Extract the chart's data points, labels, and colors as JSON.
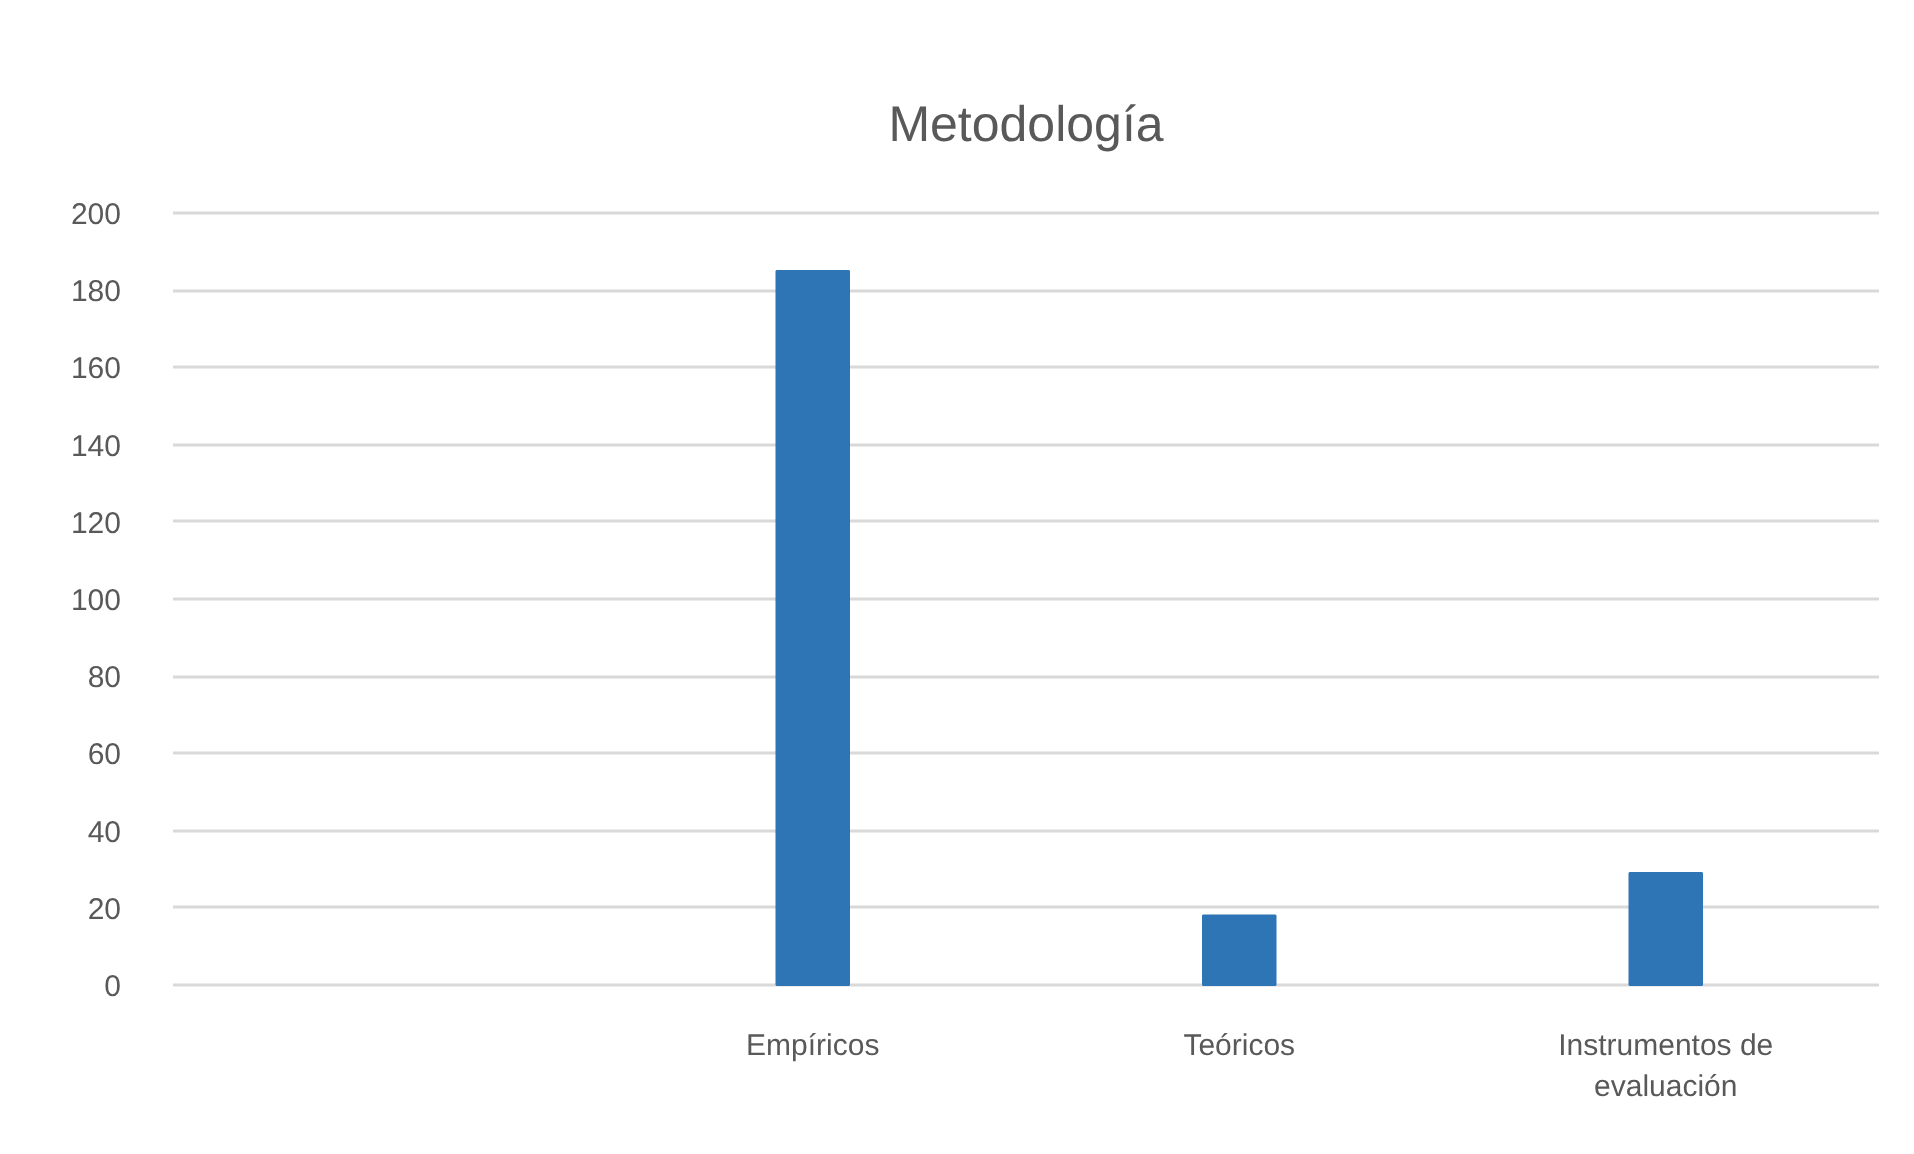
{
  "chart_data": {
    "type": "bar",
    "title": "Metodología",
    "categories": [
      null,
      "Empíricos",
      "Teóricos",
      "Instrumentos de evaluación"
    ],
    "values": [
      null,
      185,
      18,
      29
    ],
    "color": "#2e75b6",
    "ylim": [
      0,
      200
    ],
    "yticks": [
      0,
      20,
      40,
      60,
      80,
      100,
      120,
      140,
      160,
      180,
      200
    ],
    "grid": "y"
  }
}
